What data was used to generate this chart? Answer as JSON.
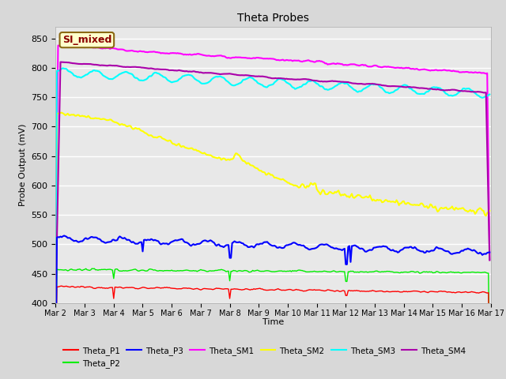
{
  "title": "Theta Probes",
  "ylabel": "Probe Output (mV)",
  "xlabel": "Time",
  "annotation": "SI_mixed",
  "background_color": "#d8d8d8",
  "plot_bg_color": "#e8e8e8",
  "ylim": [
    400,
    870
  ],
  "yticks": [
    400,
    450,
    500,
    550,
    600,
    650,
    700,
    750,
    800,
    850
  ],
  "num_points": 360,
  "series_colors": {
    "Theta_P1": "#ff0000",
    "Theta_P2": "#00ee00",
    "Theta_P3": "#0000ff",
    "Theta_SM1": "#ff00ff",
    "Theta_SM2": "#ffff00",
    "Theta_SM3": "#00ffff",
    "Theta_SM4": "#aa00aa"
  },
  "xtick_labels": [
    "Mar 2",
    "Mar 3",
    "Mar 4",
    "Mar 5",
    "Mar 6",
    "Mar 7",
    "Mar 8",
    "Mar 9",
    "Mar 10",
    "Mar 11",
    "Mar 12",
    "Mar 13",
    "Mar 14",
    "Mar 15",
    "Mar 16",
    "Mar 17"
  ],
  "xtick_positions": [
    0,
    24,
    48,
    72,
    96,
    120,
    144,
    168,
    192,
    216,
    240,
    264,
    288,
    312,
    336,
    360
  ],
  "legend_order": [
    "Theta_P1",
    "Theta_P2",
    "Theta_P3",
    "Theta_SM1",
    "Theta_SM2",
    "Theta_SM3",
    "Theta_SM4"
  ]
}
